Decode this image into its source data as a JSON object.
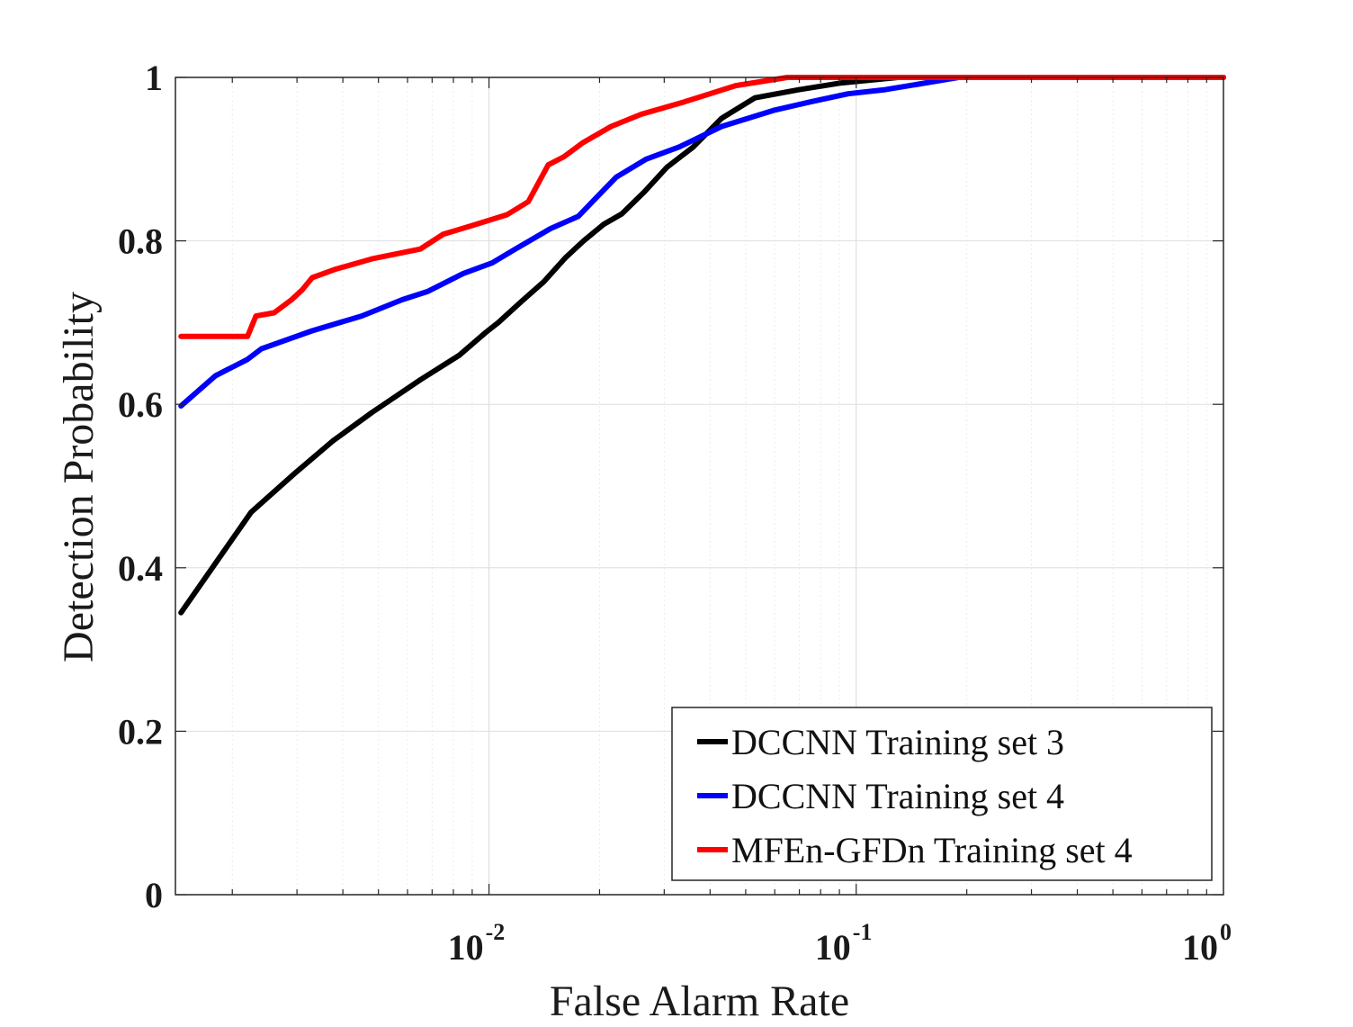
{
  "chart_data": {
    "type": "line",
    "xlabel": "False Alarm Rate",
    "ylabel": "Detection Probability",
    "xscale": "log",
    "xlim": [
      0.0014,
      1
    ],
    "ylim": [
      0,
      1
    ],
    "grid": true,
    "legend_position": "bottom-right",
    "x_ticks": [
      {
        "value": 0.01,
        "base": "10",
        "exponent": "-2"
      },
      {
        "value": 0.1,
        "base": "10",
        "exponent": "-1"
      },
      {
        "value": 1,
        "base": "10",
        "exponent": "0"
      }
    ],
    "y_ticks": [
      {
        "value": 0,
        "label": "0"
      },
      {
        "value": 0.2,
        "label": "0.2"
      },
      {
        "value": 0.4,
        "label": "0.4"
      },
      {
        "value": 0.6,
        "label": "0.6"
      },
      {
        "value": 0.8,
        "label": "0.8"
      },
      {
        "value": 1,
        "label": "1"
      }
    ],
    "series": [
      {
        "name": "DCCNN Training set 3",
        "color": "#000000",
        "points": [
          [
            0.00145,
            0.345
          ],
          [
            0.00225,
            0.468
          ],
          [
            0.00295,
            0.515
          ],
          [
            0.00375,
            0.555
          ],
          [
            0.0048,
            0.59
          ],
          [
            0.0065,
            0.63
          ],
          [
            0.0083,
            0.66
          ],
          [
            0.0098,
            0.688
          ],
          [
            0.0106,
            0.7
          ],
          [
            0.0122,
            0.725
          ],
          [
            0.0141,
            0.75
          ],
          [
            0.0162,
            0.78
          ],
          [
            0.0181,
            0.8
          ],
          [
            0.0205,
            0.82
          ],
          [
            0.023,
            0.833
          ],
          [
            0.0265,
            0.86
          ],
          [
            0.0305,
            0.89
          ],
          [
            0.036,
            0.915
          ],
          [
            0.043,
            0.95
          ],
          [
            0.053,
            0.975
          ],
          [
            0.07,
            0.985
          ],
          [
            0.09,
            0.993
          ],
          [
            0.13,
            1.0
          ],
          [
            1.0,
            1.0
          ]
        ]
      },
      {
        "name": "DCCNN Training set 4",
        "color": "#0000ff",
        "points": [
          [
            0.00145,
            0.598
          ],
          [
            0.0018,
            0.635
          ],
          [
            0.0022,
            0.655
          ],
          [
            0.0024,
            0.668
          ],
          [
            0.0033,
            0.69
          ],
          [
            0.0045,
            0.708
          ],
          [
            0.0058,
            0.728
          ],
          [
            0.0068,
            0.738
          ],
          [
            0.0085,
            0.76
          ],
          [
            0.0102,
            0.773
          ],
          [
            0.0118,
            0.79
          ],
          [
            0.0147,
            0.815
          ],
          [
            0.0175,
            0.83
          ],
          [
            0.0198,
            0.855
          ],
          [
            0.0222,
            0.878
          ],
          [
            0.0268,
            0.9
          ],
          [
            0.033,
            0.915
          ],
          [
            0.043,
            0.94
          ],
          [
            0.06,
            0.96
          ],
          [
            0.075,
            0.97
          ],
          [
            0.095,
            0.98
          ],
          [
            0.12,
            0.985
          ],
          [
            0.19,
            1.0
          ],
          [
            1.0,
            1.0
          ]
        ]
      },
      {
        "name": "MFEn-GFDn Training set 4",
        "color": "#ff0000",
        "points": [
          [
            0.00145,
            0.683
          ],
          [
            0.0022,
            0.683
          ],
          [
            0.00232,
            0.708
          ],
          [
            0.0026,
            0.712
          ],
          [
            0.0029,
            0.728
          ],
          [
            0.0031,
            0.74
          ],
          [
            0.0033,
            0.755
          ],
          [
            0.0038,
            0.765
          ],
          [
            0.0048,
            0.778
          ],
          [
            0.0065,
            0.79
          ],
          [
            0.0075,
            0.808
          ],
          [
            0.0092,
            0.82
          ],
          [
            0.0112,
            0.832
          ],
          [
            0.0128,
            0.848
          ],
          [
            0.0145,
            0.893
          ],
          [
            0.016,
            0.903
          ],
          [
            0.018,
            0.92
          ],
          [
            0.0215,
            0.94
          ],
          [
            0.026,
            0.955
          ],
          [
            0.034,
            0.97
          ],
          [
            0.047,
            0.99
          ],
          [
            0.065,
            1.0
          ],
          [
            1.0,
            1.0
          ]
        ]
      }
    ]
  }
}
